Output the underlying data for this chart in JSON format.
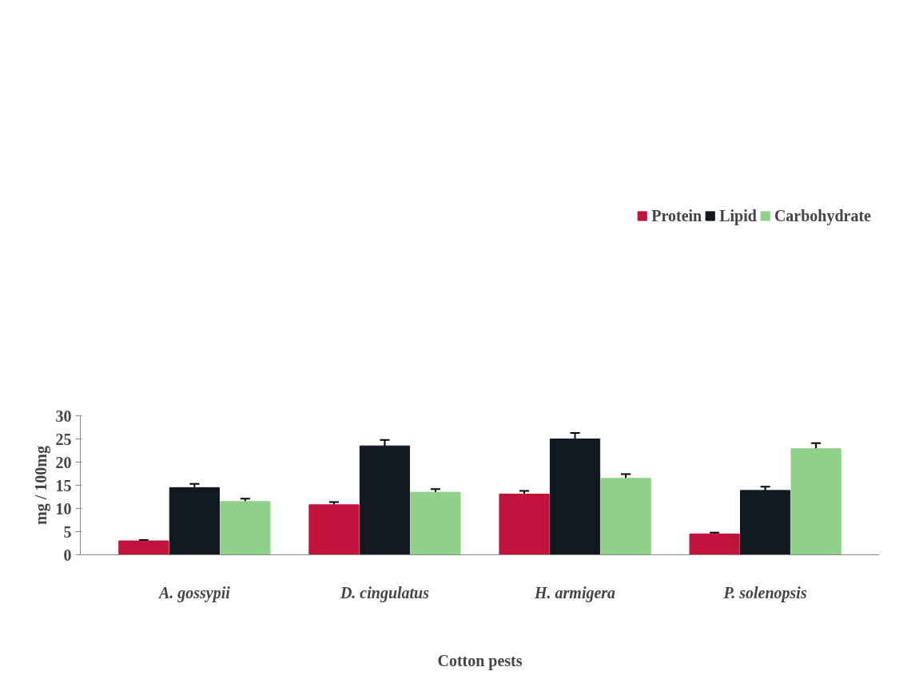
{
  "chart_data": {
    "type": "bar",
    "xlabel": "Cotton pests",
    "ylabel": "mg / 100mg",
    "categories": [
      "A. gossypii",
      "D. cingulatus",
      "H. armigera",
      "P. solenopsis"
    ],
    "series": [
      {
        "name": "Protein",
        "color": "#c0143c",
        "values": [
          3.0,
          10.8,
          13.1,
          4.5
        ],
        "errors": [
          0.2,
          0.6,
          0.7,
          0.3
        ]
      },
      {
        "name": "Lipid",
        "color": "#111820",
        "values": [
          14.5,
          23.5,
          25.0,
          13.9
        ],
        "errors": [
          0.8,
          1.3,
          1.3,
          0.8
        ]
      },
      {
        "name": "Carbohydrate",
        "color": "#8fd18a",
        "values": [
          11.5,
          13.5,
          16.5,
          22.9
        ],
        "errors": [
          0.6,
          0.7,
          0.9,
          1.2
        ]
      }
    ],
    "ylim": [
      0,
      30
    ],
    "yticks": [
      0,
      5,
      10,
      15,
      20,
      25,
      30
    ],
    "grid": false,
    "legend": "top right"
  }
}
